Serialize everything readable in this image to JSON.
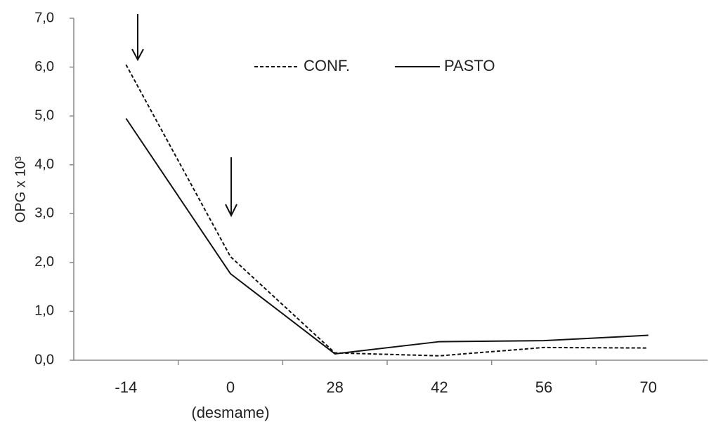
{
  "chart_data": {
    "type": "line",
    "ylabel": "OPG x 10³",
    "categories": [
      "-14",
      "0",
      "28",
      "42",
      "56",
      "70"
    ],
    "category_sublabels": [
      null,
      "(desmame)",
      null,
      null,
      null,
      null
    ],
    "series": [
      {
        "name": "CONF.",
        "color": "#111111",
        "linestyle": "dashed",
        "values": [
          6.05,
          2.12,
          0.15,
          0.09,
          0.26,
          0.25
        ]
      },
      {
        "name": "PASTO",
        "color": "#111111",
        "linestyle": "solid",
        "values": [
          4.95,
          1.77,
          0.13,
          0.38,
          0.4,
          0.51
        ]
      }
    ],
    "ylim": [
      0,
      7
    ],
    "yticks": [
      {
        "value": 0,
        "label": "0,0"
      },
      {
        "value": 1,
        "label": "1,0"
      },
      {
        "value": 2,
        "label": "2,0"
      },
      {
        "value": 3,
        "label": "3,0"
      },
      {
        "value": 4,
        "label": "4,0"
      },
      {
        "value": 5,
        "label": "5,0"
      },
      {
        "value": 6,
        "label": "6,0"
      },
      {
        "value": 7,
        "label": "7,0"
      }
    ],
    "grid": false,
    "legend": "top"
  }
}
